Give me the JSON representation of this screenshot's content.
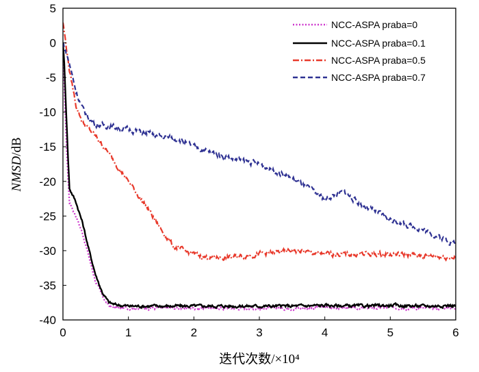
{
  "chart_data": {
    "type": "line",
    "xlabel": "迭代次数/×10⁴",
    "ylabel_italic": "NMSD",
    "ylabel_unit": "/dB",
    "xlim": [
      0,
      6
    ],
    "ylim": [
      -40,
      5
    ],
    "x_ticks": [
      "0",
      "1",
      "2",
      "3",
      "4",
      "5",
      "6"
    ],
    "y_ticks": [
      "5",
      "0",
      "-5",
      "-10",
      "-15",
      "-20",
      "-25",
      "-30",
      "-35",
      "-40"
    ],
    "grid": false,
    "legend_position": "top-right",
    "series": [
      {
        "name": "NCC-ASPA praba=0",
        "color": "#cc33cc",
        "dash": "dotted",
        "x": [
          0,
          0.02,
          0.05,
          0.08,
          0.1,
          0.15,
          0.2,
          0.3,
          0.4,
          0.5,
          0.6,
          0.7,
          0.8,
          1,
          1.5,
          2,
          2.5,
          3,
          3.5,
          4,
          4.5,
          5,
          5.5,
          6
        ],
        "y": [
          -1,
          -6,
          -14,
          -20,
          -23,
          -24,
          -25,
          -27.5,
          -31,
          -34.5,
          -36.5,
          -38,
          -38.3,
          -38.3,
          -38.3,
          -38.3,
          -38.3,
          -38.3,
          -38.3,
          -38.2,
          -38.3,
          -38.2,
          -38.3,
          -38.2
        ]
      },
      {
        "name": "NCC-ASPA praba=0.1",
        "color": "#000000",
        "dash": "solid",
        "x": [
          0,
          0.02,
          0.05,
          0.08,
          0.1,
          0.15,
          0.2,
          0.3,
          0.4,
          0.5,
          0.6,
          0.7,
          0.8,
          1,
          1.5,
          2,
          2.5,
          3,
          3.5,
          4,
          4.5,
          5,
          5.5,
          6
        ],
        "y": [
          0,
          -3,
          -10,
          -17,
          -21,
          -22,
          -23,
          -26,
          -30,
          -33.5,
          -36,
          -37.5,
          -37.8,
          -38,
          -38,
          -38,
          -38,
          -38,
          -38,
          -37.9,
          -38,
          -37.9,
          -38,
          -37.9
        ]
      },
      {
        "name": "NCC-ASPA praba=0.5",
        "color": "#e8392b",
        "dash": "dashdot",
        "x": [
          0,
          0.1,
          0.2,
          0.3,
          0.4,
          0.5,
          0.7,
          1,
          1.3,
          1.5,
          1.7,
          2,
          2.2,
          2.5,
          3,
          3.5,
          4,
          4.5,
          5,
          5.5,
          6
        ],
        "y": [
          3,
          -4,
          -9,
          -11.5,
          -12.5,
          -13.5,
          -16,
          -20,
          -24,
          -27,
          -29.5,
          -30.5,
          -31,
          -31,
          -30.5,
          -30,
          -30.5,
          -30.5,
          -30.5,
          -30.7,
          -31
        ]
      },
      {
        "name": "NCC-ASPA praba=0.7",
        "color": "#2e3192",
        "dash": "dashed",
        "x": [
          0,
          0.1,
          0.2,
          0.3,
          0.4,
          0.5,
          0.7,
          1,
          1.5,
          1.8,
          2,
          2.5,
          3,
          3.5,
          4,
          4.3,
          4.5,
          5,
          5.5,
          6
        ],
        "y": [
          0,
          -3,
          -7,
          -9.5,
          -11,
          -11.8,
          -12,
          -12.5,
          -13.5,
          -14,
          -15,
          -16.5,
          -17.5,
          -19.5,
          -22.5,
          -21.5,
          -23,
          -25.5,
          -27,
          -29
        ]
      }
    ]
  }
}
